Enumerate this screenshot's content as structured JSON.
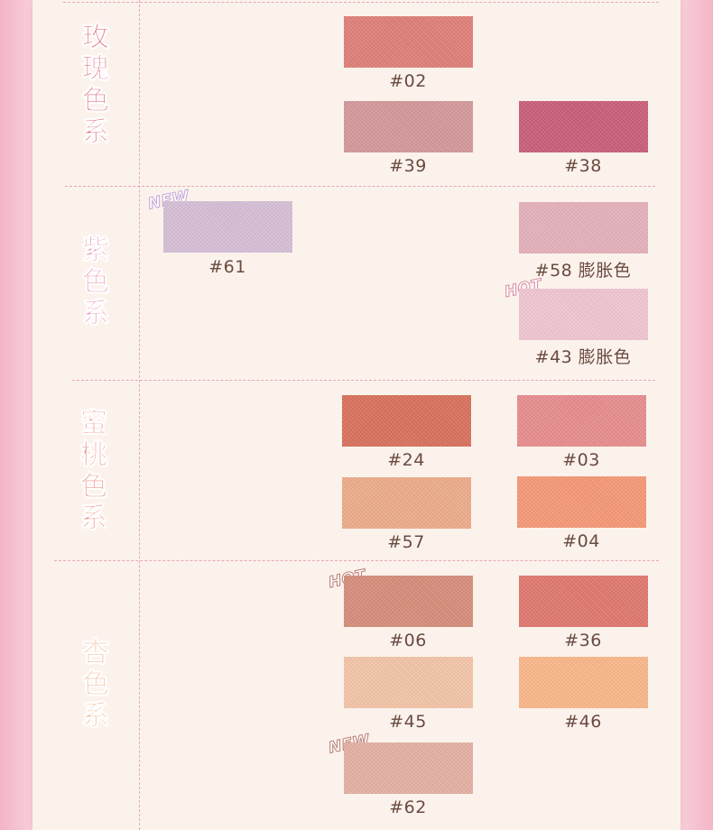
{
  "colors": {
    "background_side": "#f3b5c6",
    "paper": "#fcf2ec",
    "divider": "#e7a7b7",
    "label_text": "#6a4a40"
  },
  "sections": [
    {
      "name": "rose",
      "title_chars": [
        "玫",
        "瑰",
        "色",
        "系"
      ],
      "title_color": "#e0657a",
      "swatches": [
        {
          "code": "#02",
          "color": "#e2807a",
          "badge": ""
        },
        {
          "code": "#39",
          "color": "#d69a9c",
          "badge": ""
        },
        {
          "code": "#38",
          "color": "#cc5f7b",
          "badge": ""
        }
      ]
    },
    {
      "name": "purple",
      "title_chars": [
        "紫",
        "色",
        "系"
      ],
      "title_color": "#ef92b0",
      "swatches": [
        {
          "code": "#61",
          "color": "#d9c1d9",
          "badge": "NEW"
        },
        {
          "code": "#58 膨胀色",
          "color": "#e8b2be",
          "badge": ""
        },
        {
          "code": "#43 膨胀色",
          "color": "#f3c8d4",
          "badge": "HOT"
        }
      ]
    },
    {
      "name": "peach",
      "title_chars": [
        "蜜",
        "桃",
        "色",
        "系"
      ],
      "title_color": "#ec8a7a",
      "swatches": [
        {
          "code": "#24",
          "color": "#db725d",
          "badge": ""
        },
        {
          "code": "#03",
          "color": "#ea8e90",
          "badge": ""
        },
        {
          "code": "#57",
          "color": "#efae8c",
          "badge": ""
        },
        {
          "code": "#04",
          "color": "#f99a78",
          "badge": ""
        }
      ]
    },
    {
      "name": "apricot",
      "title_chars": [
        "杏",
        "色",
        "系"
      ],
      "title_color": "#f3b58d",
      "swatches": [
        {
          "code": "#06",
          "color": "#d98f7c",
          "badge": "HOT"
        },
        {
          "code": "#36",
          "color": "#e27970",
          "badge": ""
        },
        {
          "code": "#45",
          "color": "#f6c7aa",
          "badge": ""
        },
        {
          "code": "#46",
          "color": "#fdb98b",
          "badge": ""
        },
        {
          "code": "#62",
          "color": "#e7b2a5",
          "badge": "NEW"
        }
      ]
    }
  ]
}
